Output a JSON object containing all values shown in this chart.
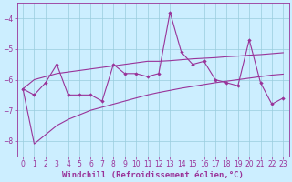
{
  "x": [
    0,
    1,
    2,
    3,
    4,
    5,
    6,
    7,
    8,
    9,
    10,
    11,
    12,
    13,
    14,
    15,
    16,
    17,
    18,
    19,
    20,
    21,
    22,
    23
  ],
  "main_line": [
    -6.3,
    -6.5,
    -6.1,
    -5.5,
    -6.5,
    -6.5,
    -6.5,
    -6.7,
    -5.5,
    -5.8,
    -5.8,
    -5.9,
    -5.8,
    -3.8,
    -5.1,
    -5.5,
    -5.4,
    -6.0,
    -6.1,
    -6.2,
    -4.7,
    -6.1,
    -6.8,
    -6.6
  ],
  "envelope_upper": [
    -6.3,
    -6.0,
    -5.9,
    -5.8,
    -5.75,
    -5.7,
    -5.65,
    -5.6,
    -5.55,
    -5.5,
    -5.45,
    -5.4,
    -5.4,
    -5.38,
    -5.35,
    -5.32,
    -5.3,
    -5.28,
    -5.25,
    -5.23,
    -5.2,
    -5.18,
    -5.15,
    -5.12
  ],
  "envelope_lower": [
    -6.3,
    -8.1,
    -7.8,
    -7.5,
    -7.3,
    -7.15,
    -7.0,
    -6.9,
    -6.8,
    -6.7,
    -6.6,
    -6.5,
    -6.42,
    -6.35,
    -6.28,
    -6.22,
    -6.16,
    -6.1,
    -6.05,
    -6.0,
    -5.95,
    -5.9,
    -5.85,
    -5.82
  ],
  "background_color": "#cceeff",
  "grid_color": "#99ccdd",
  "line_color": "#993399",
  "xlabel": "Windchill (Refroidissement éolien,°C)",
  "ylim": [
    -8.5,
    -3.5
  ],
  "xlim": [
    -0.5,
    23.5
  ],
  "yticks": [
    -8,
    -7,
    -6,
    -5,
    -4
  ],
  "xticks": [
    0,
    1,
    2,
    3,
    4,
    5,
    6,
    7,
    8,
    9,
    10,
    11,
    12,
    13,
    14,
    15,
    16,
    17,
    18,
    19,
    20,
    21,
    22,
    23
  ],
  "tick_fontsize": 5.5,
  "xlabel_fontsize": 6.5
}
